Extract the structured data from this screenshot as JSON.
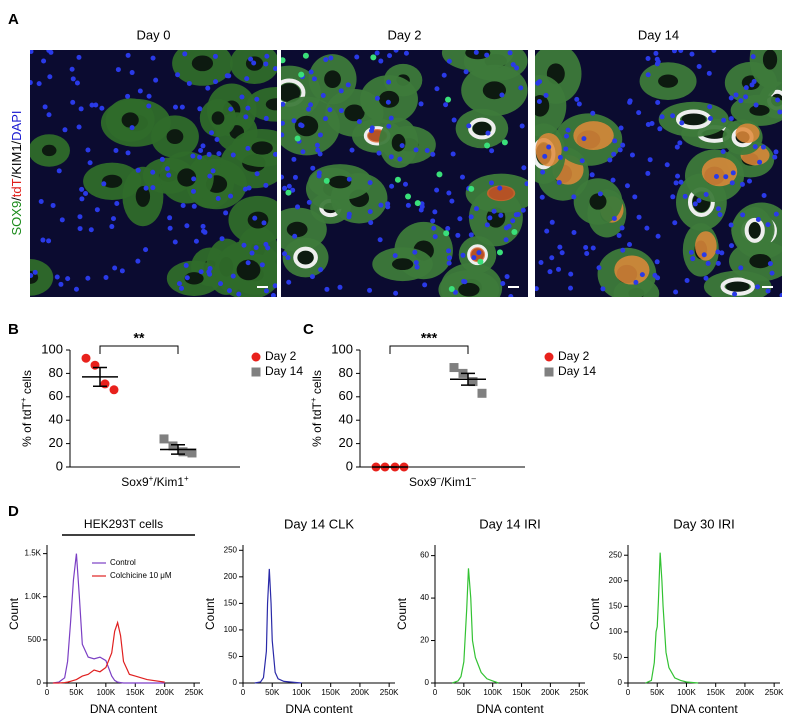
{
  "panel_labels": [
    "A",
    "B",
    "C",
    "D"
  ],
  "micrographs": {
    "titles": [
      "Day 0",
      "Day 2",
      "Day 14"
    ],
    "stain_label": [
      {
        "text": "SOX9",
        "color": "#1a8a1a"
      },
      {
        "text": "/",
        "color": "#000000"
      },
      {
        "text": "tdT",
        "color": "#e0201b"
      },
      {
        "text": "/KIM1/",
        "color": "#000000"
      },
      {
        "text": "DAPI",
        "color": "#1a1ad0"
      }
    ]
  },
  "chart_data": [
    {
      "type": "scatter",
      "ylabel": [
        "% of tdT",
        "+",
        " cells"
      ],
      "xlabel": [
        "Sox9",
        "+",
        "/Kim1",
        "+"
      ],
      "significance": "**",
      "ylim": [
        0,
        100
      ],
      "yticks": [
        0,
        20,
        40,
        60,
        80,
        100
      ],
      "series": [
        {
          "name": "Day 2",
          "color": "#e8211c",
          "marker": "circle",
          "values": [
            93,
            87,
            71,
            66
          ],
          "mean": 77,
          "sem": 8
        },
        {
          "name": "Day 14",
          "color": "#808080",
          "marker": "square",
          "values": [
            24,
            18,
            13,
            12
          ],
          "mean": 15,
          "sem": 4
        }
      ]
    },
    {
      "type": "scatter",
      "ylabel": [
        "% of tdT",
        "+",
        " cells"
      ],
      "xlabel": [
        "Sox9",
        "–",
        "/Kim1",
        "–"
      ],
      "significance": "***",
      "ylim": [
        0,
        100
      ],
      "yticks": [
        0,
        20,
        40,
        60,
        80,
        100
      ],
      "series": [
        {
          "name": "Day 2",
          "color": "#e8211c",
          "marker": "circle",
          "values": [
            0,
            0,
            0,
            0
          ],
          "mean": 0,
          "sem": 0
        },
        {
          "name": "Day 14",
          "color": "#808080",
          "marker": "square",
          "values": [
            85,
            80,
            73,
            63
          ],
          "mean": 75,
          "sem": 5
        }
      ]
    },
    {
      "type": "line",
      "title": "HEK293T cells",
      "xlabel": "DNA content",
      "ylabel": "Count",
      "xlim": [
        0,
        260000
      ],
      "xticks": [
        0,
        {
          "value": 50000,
          "label": "50K"
        },
        {
          "value": 100000,
          "label": "100K"
        },
        {
          "value": 150000,
          "label": "150K"
        },
        {
          "value": 200000,
          "label": "200K"
        },
        {
          "value": 250000,
          "label": "250K"
        }
      ],
      "ylim": [
        0,
        1600
      ],
      "yticks": [
        0,
        500,
        {
          "value": 1000,
          "label": "1.0K"
        },
        {
          "value": 1500,
          "label": "1.5K"
        }
      ],
      "x": [
        10000,
        20000,
        30000,
        35000,
        40000,
        45000,
        50000,
        55000,
        60000,
        70000,
        80000,
        90000,
        100000,
        110000,
        115000,
        120000,
        125000,
        130000,
        140000,
        150000,
        170000,
        200000
      ],
      "series": [
        {
          "name": "Control",
          "color": "#7b3fc4",
          "values": [
            0,
            10,
            60,
            250,
            700,
            1200,
            1500,
            1000,
            450,
            300,
            280,
            300,
            260,
            80,
            30,
            10,
            5,
            0,
            0,
            0,
            0,
            0
          ]
        },
        {
          "name": "Colchicine 10 μM",
          "color": "#e02020",
          "values": [
            0,
            0,
            5,
            10,
            20,
            30,
            40,
            60,
            80,
            100,
            150,
            130,
            180,
            350,
            600,
            700,
            550,
            250,
            100,
            80,
            40,
            10
          ]
        }
      ]
    },
    {
      "type": "line",
      "title": "Day 14 CLK",
      "xlabel": "DNA content",
      "ylabel": "Count",
      "xlim": [
        0,
        260000
      ],
      "xticks": [
        0,
        {
          "value": 50000,
          "label": "50K"
        },
        {
          "value": 100000,
          "label": "100K"
        },
        {
          "value": 150000,
          "label": "150K"
        },
        {
          "value": 200000,
          "label": "200K"
        },
        {
          "value": 250000,
          "label": "250K"
        }
      ],
      "ylim": [
        0,
        260
      ],
      "yticks": [
        0,
        50,
        100,
        150,
        200,
        250
      ],
      "x": [
        20000,
        30000,
        35000,
        40000,
        42000,
        45000,
        48000,
        50000,
        55000,
        60000,
        70000,
        90000,
        100000
      ],
      "series": [
        {
          "color": "#2a2aa8",
          "values": [
            0,
            2,
            10,
            60,
            150,
            215,
            150,
            80,
            20,
            8,
            3,
            1,
            0
          ]
        }
      ]
    },
    {
      "type": "line",
      "title": "Day 14 IRI",
      "xlabel": "DNA content",
      "ylabel": "Count",
      "xlim": [
        0,
        260000
      ],
      "xticks": [
        0,
        {
          "value": 50000,
          "label": "50K"
        },
        {
          "value": 100000,
          "label": "100K"
        },
        {
          "value": 150000,
          "label": "150K"
        },
        {
          "value": 200000,
          "label": "200K"
        },
        {
          "value": 250000,
          "label": "250K"
        }
      ],
      "ylim": [
        0,
        65
      ],
      "yticks": [
        0,
        20,
        40,
        60
      ],
      "x": [
        30000,
        40000,
        45000,
        50000,
        55000,
        58000,
        62000,
        65000,
        70000,
        80000,
        90000,
        100000,
        110000
      ],
      "series": [
        {
          "color": "#33c233",
          "values": [
            0,
            1,
            3,
            10,
            35,
            54,
            40,
            20,
            12,
            5,
            2,
            1,
            0
          ]
        }
      ]
    },
    {
      "type": "line",
      "title": "Day 30 IRI",
      "xlabel": "DNA content",
      "ylabel": "Count",
      "xlim": [
        0,
        260000
      ],
      "xticks": [
        0,
        {
          "value": 50000,
          "label": "50K"
        },
        {
          "value": 100000,
          "label": "100K"
        },
        {
          "value": 150000,
          "label": "150K"
        },
        {
          "value": 200000,
          "label": "200K"
        },
        {
          "value": 250000,
          "label": "250K"
        }
      ],
      "ylim": [
        0,
        270
      ],
      "yticks": [
        0,
        50,
        100,
        150,
        200,
        250
      ],
      "x": [
        30000,
        40000,
        45000,
        48000,
        50000,
        52000,
        55000,
        58000,
        60000,
        65000,
        70000,
        80000,
        90000,
        100000,
        120000
      ],
      "series": [
        {
          "color": "#33c233",
          "values": [
            0,
            5,
            40,
            100,
            110,
            160,
            255,
            200,
            150,
            60,
            30,
            10,
            5,
            2,
            0
          ]
        }
      ]
    }
  ]
}
